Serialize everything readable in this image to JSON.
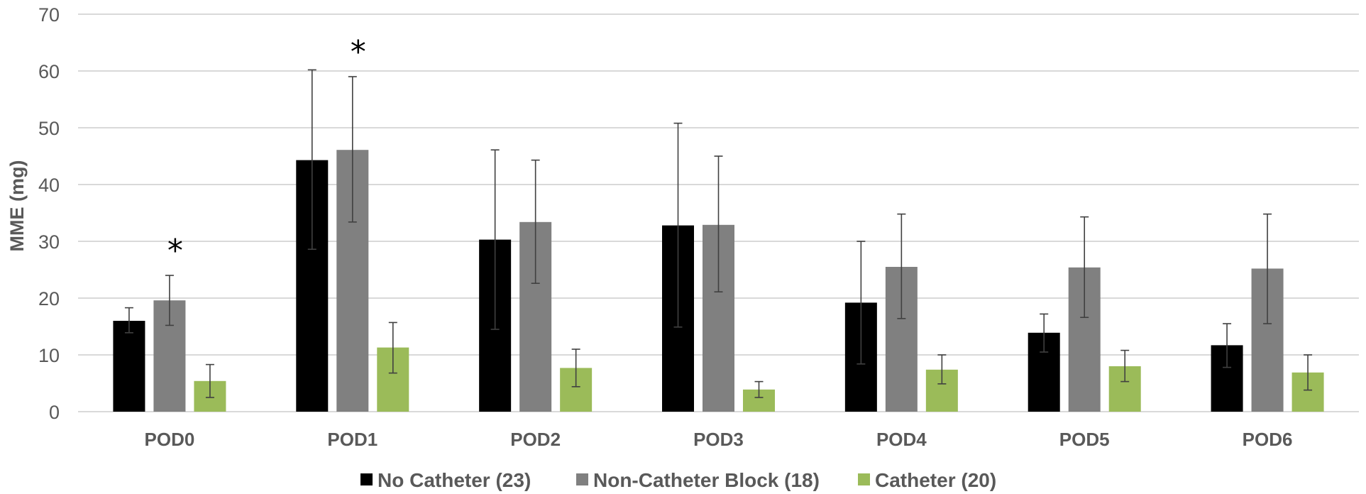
{
  "chart_data": {
    "type": "bar",
    "title": "",
    "xlabel": "",
    "ylabel": "MME (mg)",
    "ylim": [
      0,
      70
    ],
    "yticks": [
      "0",
      "10",
      "20",
      "30",
      "40",
      "50",
      "60",
      "70"
    ],
    "grid": true,
    "legend_position": "bottom",
    "categories": [
      "POD0",
      "POD1",
      "POD2",
      "POD3",
      "POD4",
      "POD5",
      "POD6"
    ],
    "series": [
      {
        "name": "No Catheter  (23)",
        "color": "#000000",
        "values": [
          16.0,
          44.3,
          30.3,
          32.8,
          19.2,
          13.9,
          11.7
        ],
        "error_low": [
          13.9,
          28.6,
          14.5,
          14.9,
          8.4,
          10.5,
          7.8
        ],
        "error_high": [
          18.3,
          60.2,
          46.1,
          50.8,
          30.0,
          17.2,
          15.5
        ]
      },
      {
        "name": "Non-Catheter Block (18)",
        "color": "#808080",
        "values": [
          19.6,
          46.1,
          33.4,
          32.9,
          25.5,
          25.4,
          25.2
        ],
        "error_low": [
          15.2,
          33.4,
          22.6,
          21.1,
          16.4,
          16.6,
          15.5
        ],
        "error_high": [
          24.0,
          59.0,
          44.3,
          45.0,
          34.8,
          34.3,
          34.8
        ]
      },
      {
        "name": "Catheter (20)",
        "color": "#9bbb59",
        "values": [
          5.4,
          11.3,
          7.7,
          3.9,
          7.4,
          8.0,
          6.9
        ],
        "error_low": [
          2.5,
          6.8,
          4.4,
          2.5,
          4.9,
          5.3,
          3.8
        ],
        "error_high": [
          8.3,
          15.7,
          11.0,
          5.3,
          10.0,
          10.8,
          10.0
        ]
      }
    ],
    "annotations": [
      {
        "text": "*",
        "category": "POD0",
        "series": "Non-Catheter Block (18)"
      },
      {
        "text": "*",
        "category": "POD1",
        "series": "Non-Catheter Block (18)"
      }
    ]
  }
}
